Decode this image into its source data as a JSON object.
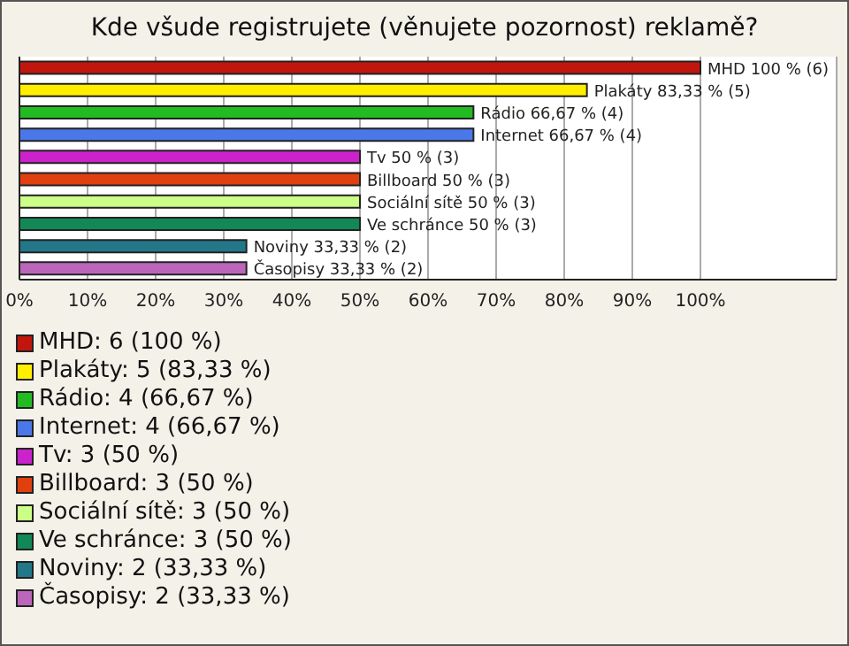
{
  "chart_data": {
    "type": "bar",
    "orientation": "horizontal",
    "title": "Kde všude registrujete (věnujete pozornost) reklamě?",
    "categories": [
      null,
      null,
      null,
      null,
      null,
      null,
      null,
      null,
      null,
      null
    ],
    "values": [
      100,
      83.33,
      66.67,
      66.67,
      50,
      50,
      50,
      50,
      33.33,
      33.33
    ],
    "value_labels": [
      "MHD 100 % (6)",
      "Plakáty 83,33 % (5)",
      "Rádio 66,67 % (4)",
      "Internet 66,67 % (4)",
      "Tv 50 % (3)",
      "Billboard 50 % (3)",
      "Sociální sítě 50 % (3)",
      "Ve schránce 50 % (3)",
      "Noviny 33,33 % (2)",
      "Časopisy 33,33 % (2)"
    ],
    "colors": [
      "#c0160e",
      "#ffee00",
      "#22bb22",
      "#4a78e8",
      "#cc22cc",
      "#e04010",
      "#ccff88",
      "#118855",
      "#227788",
      "#bb66bb"
    ],
    "xlim": [
      0,
      120
    ],
    "xticks": [
      {
        "value": 0,
        "label": "0%"
      },
      {
        "value": 10,
        "label": "10%"
      },
      {
        "value": 20,
        "label": "20%"
      },
      {
        "value": 30,
        "label": "30%"
      },
      {
        "value": 40,
        "label": "40%"
      },
      {
        "value": 50,
        "label": "50%"
      },
      {
        "value": 60,
        "label": "60%"
      },
      {
        "value": 70,
        "label": "70%"
      },
      {
        "value": 80,
        "label": "80%"
      },
      {
        "value": 90,
        "label": "90%"
      },
      {
        "value": 100,
        "label": "100%"
      }
    ],
    "grid": "x",
    "tick_labels": "x",
    "annotations": [
      "MHD: 6 (100 %)",
      "Plakáty: 5 (83,33 %)",
      "Rádio: 4 (66,67 %)",
      "Internet: 4 (66,67 %)",
      "Tv: 3 (50 %)",
      "Billboard: 3 (50 %)",
      "Sociální sítě: 3 (50 %)",
      "Ve schránce: 3 (50 %)",
      "Noviny: 2 (33,33 %)",
      "Časopisy: 2 (33,33 %)"
    ]
  }
}
